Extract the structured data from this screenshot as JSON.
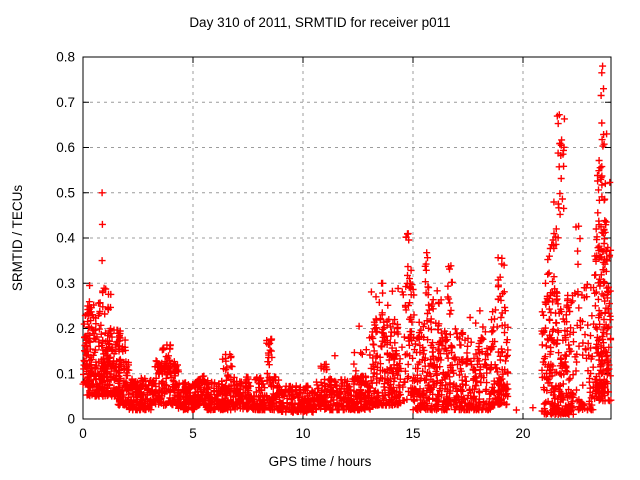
{
  "chart": {
    "title": "Day 310 of 2011, SRMTID for receiver p011",
    "xlabel": "GPS time / hours",
    "ylabel": "SRMTID / TECUs"
  },
  "chart_data": {
    "type": "scatter",
    "title": "Day 310 of 2011, SRMTID for receiver p011",
    "xlabel": "GPS time / hours",
    "ylabel": "SRMTID / TECUs",
    "xlim": [
      0,
      24
    ],
    "ylim": [
      0,
      0.8
    ],
    "xticks": [
      {
        "v": 0,
        "label": "0"
      },
      {
        "v": 5,
        "label": "5"
      },
      {
        "v": 10,
        "label": "10"
      },
      {
        "v": 15,
        "label": "15"
      },
      {
        "v": 20,
        "label": "20"
      }
    ],
    "yticks": [
      {
        "v": 0.0,
        "label": "0"
      },
      {
        "v": 0.1,
        "label": "0.1"
      },
      {
        "v": 0.2,
        "label": "0.2"
      },
      {
        "v": 0.3,
        "label": "0.3"
      },
      {
        "v": 0.4,
        "label": "0.4"
      },
      {
        "v": 0.5,
        "label": "0.5"
      },
      {
        "v": 0.6,
        "label": "0.6"
      },
      {
        "v": 0.7,
        "label": "0.7"
      },
      {
        "v": 0.8,
        "label": "0.8"
      }
    ],
    "grid": true,
    "legend": "none",
    "marker": "plus",
    "marker_size_px": 7,
    "colors": {
      "points": "#ff0000",
      "grid": "#9c9c9c",
      "axis": "#000000",
      "text": "#000000",
      "background": "#ffffff"
    },
    "cluster_fields": [
      "x_start",
      "x_end",
      "count",
      "y_min",
      "y_max",
      "bottom_bias"
    ],
    "clusters": [
      [
        0.0,
        0.35,
        45,
        0.07,
        0.27,
        1.6
      ],
      [
        0.15,
        1.15,
        170,
        0.05,
        0.26,
        1.8
      ],
      [
        0.7,
        1.3,
        14,
        0.22,
        0.29,
        1.0
      ],
      [
        1.1,
        1.7,
        110,
        0.05,
        0.2,
        1.7
      ],
      [
        1.6,
        2.1,
        70,
        0.03,
        0.13,
        1.5
      ],
      [
        1.7,
        2.0,
        6,
        0.13,
        0.18,
        1.0
      ],
      [
        2.1,
        3.2,
        130,
        0.02,
        0.09,
        1.6
      ],
      [
        3.2,
        4.35,
        140,
        0.03,
        0.13,
        1.7
      ],
      [
        3.55,
        4.0,
        18,
        0.11,
        0.165,
        1.0
      ],
      [
        4.3,
        5.15,
        95,
        0.02,
        0.08,
        1.5
      ],
      [
        5.1,
        5.6,
        55,
        0.03,
        0.115,
        1.4
      ],
      [
        5.6,
        7.4,
        190,
        0.02,
        0.085,
        1.5
      ],
      [
        6.3,
        6.9,
        25,
        0.07,
        0.145,
        1.2
      ],
      [
        7.4,
        9.0,
        170,
        0.02,
        0.095,
        1.5
      ],
      [
        8.35,
        8.65,
        16,
        0.1,
        0.185,
        1.0
      ],
      [
        9.0,
        10.6,
        160,
        0.015,
        0.075,
        1.4
      ],
      [
        10.6,
        12.1,
        150,
        0.02,
        0.09,
        1.5
      ],
      [
        10.8,
        11.1,
        10,
        0.08,
        0.125,
        1.0
      ],
      [
        12.1,
        13.05,
        110,
        0.02,
        0.095,
        1.5
      ],
      [
        12.3,
        12.9,
        6,
        0.1,
        0.16,
        1.0
      ],
      [
        13.0,
        14.45,
        190,
        0.03,
        0.22,
        1.9
      ],
      [
        13.1,
        14.4,
        25,
        0.18,
        0.3,
        1.2
      ],
      [
        14.5,
        15.05,
        55,
        0.04,
        0.3,
        1.4
      ],
      [
        14.68,
        14.92,
        12,
        0.28,
        0.425,
        1.0
      ],
      [
        15.0,
        16.35,
        180,
        0.02,
        0.22,
        1.9
      ],
      [
        15.5,
        15.75,
        14,
        0.2,
        0.37,
        1.1
      ],
      [
        15.8,
        16.3,
        10,
        0.2,
        0.3,
        1.0
      ],
      [
        16.35,
        17.35,
        130,
        0.02,
        0.2,
        1.8
      ],
      [
        16.55,
        16.8,
        12,
        0.18,
        0.345,
        1.0
      ],
      [
        17.35,
        18.55,
        130,
        0.02,
        0.18,
        1.8
      ],
      [
        17.5,
        18.4,
        8,
        0.15,
        0.25,
        1.0
      ],
      [
        18.55,
        19.35,
        110,
        0.03,
        0.25,
        1.8
      ],
      [
        18.85,
        19.15,
        14,
        0.22,
        0.375,
        1.0
      ],
      [
        20.85,
        22.3,
        230,
        0.01,
        0.28,
        2.0
      ],
      [
        21.0,
        21.6,
        20,
        0.25,
        0.45,
        1.2
      ],
      [
        21.55,
        21.95,
        22,
        0.42,
        0.69,
        0.9
      ],
      [
        21.3,
        21.5,
        6,
        0.3,
        0.5,
        1.0
      ],
      [
        22.35,
        23.25,
        70,
        0.02,
        0.3,
        1.8
      ],
      [
        22.4,
        22.6,
        5,
        0.32,
        0.43,
        1.0
      ],
      [
        23.25,
        24.0,
        150,
        0.04,
        0.45,
        1.6
      ],
      [
        23.35,
        23.95,
        35,
        0.35,
        0.58,
        1.1
      ],
      [
        23.4,
        23.8,
        6,
        0.6,
        0.66,
        1.0
      ],
      [
        23.3,
        23.7,
        30,
        0.05,
        0.17,
        1.3
      ]
    ],
    "outlier_points": [
      [
        0.87,
        0.5
      ],
      [
        0.88,
        0.43
      ],
      [
        0.87,
        0.35
      ],
      [
        0.3,
        0.295
      ],
      [
        19.7,
        0.02
      ],
      [
        20.45,
        0.025
      ],
      [
        23.62,
        0.78
      ],
      [
        23.58,
        0.765
      ],
      [
        23.66,
        0.73
      ],
      [
        23.55,
        0.715
      ],
      [
        12.55,
        0.205
      ],
      [
        11.45,
        0.14
      ]
    ]
  }
}
